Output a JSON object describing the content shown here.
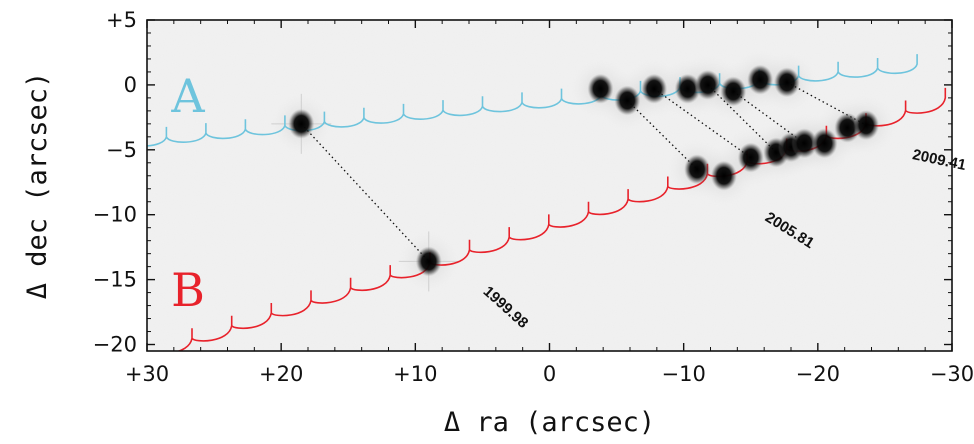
{
  "chart_data": {
    "type": "scatter",
    "title": "",
    "xlabel": "Δ ra (arcsec)",
    "ylabel": "Δ dec (arcsec)",
    "xlim": [
      30,
      -30
    ],
    "ylim": [
      -20.5,
      5
    ],
    "x_reversed": true,
    "grid": false,
    "legend": "none",
    "x_ticks": [
      30,
      20,
      10,
      0,
      -10,
      -20,
      -30
    ],
    "x_tick_labels": [
      "+30",
      "+20",
      "+10",
      "0",
      "−10",
      "−20",
      "−30"
    ],
    "y_ticks": [
      5,
      0,
      -5,
      -10,
      -15,
      -20
    ],
    "y_tick_labels": [
      "+5",
      "0",
      "−5",
      "−10",
      "−15",
      "−20"
    ],
    "tracks": [
      {
        "label": "A",
        "color": "#6ec4dd",
        "start": [
          31.5,
          -4.3
        ],
        "end": [
          -27.4,
          1.6
        ],
        "loop_spacing": 2.9,
        "loop_depth": 0.7
      },
      {
        "label": "B",
        "color": "#e8222b",
        "start": [
          29.6,
          -20.5
        ],
        "end": [
          -29.5,
          -1.0
        ],
        "loop_spacing": 3.0,
        "loop_depth": 0.8
      }
    ],
    "series": [
      {
        "points": [
          [
            18.5,
            -3.0
          ],
          [
            -3.8,
            -0.3
          ],
          [
            -5.8,
            -1.2
          ],
          [
            -7.8,
            -0.3
          ],
          [
            -10.3,
            -0.3
          ],
          [
            -11.8,
            0.0
          ],
          [
            -13.7,
            -0.5
          ],
          [
            -15.7,
            0.4
          ],
          [
            -17.7,
            0.2
          ]
        ]
      },
      {
        "points": [
          [
            9.0,
            -13.6
          ],
          [
            -11.0,
            -6.5
          ],
          [
            -13.0,
            -7.0
          ],
          [
            -15.0,
            -5.6
          ],
          [
            -16.9,
            -5.2
          ],
          [
            -18.0,
            -4.8
          ],
          [
            -19.0,
            -4.5
          ],
          [
            -20.5,
            -4.5
          ],
          [
            -22.2,
            -3.3
          ],
          [
            -23.6,
            -3.1
          ]
        ]
      }
    ],
    "connectors": [
      {
        "from": [
          18.5,
          -3.0
        ],
        "to": [
          9.0,
          -13.6
        ]
      },
      {
        "from": [
          -5.8,
          -1.2
        ],
        "to": [
          -11.0,
          -6.5
        ]
      },
      {
        "from": [
          -7.8,
          -0.3
        ],
        "to": [
          -15.0,
          -5.6
        ]
      },
      {
        "from": [
          -11.8,
          0.0
        ],
        "to": [
          -16.9,
          -5.2
        ]
      },
      {
        "from": [
          -13.7,
          -0.5
        ],
        "to": [
          -19.0,
          -4.5
        ]
      },
      {
        "from": [
          -17.7,
          0.2
        ],
        "to": [
          -23.6,
          -3.1
        ]
      }
    ],
    "annotations": [
      {
        "text": "1999.98",
        "at": [
          5.0,
          -16.0
        ],
        "angle": 42
      },
      {
        "text": "2005.81",
        "at": [
          -16.0,
          -10.4
        ],
        "angle": 32
      },
      {
        "text": "2009.41",
        "at": [
          -27.0,
          -5.7
        ],
        "angle": 12
      }
    ]
  }
}
